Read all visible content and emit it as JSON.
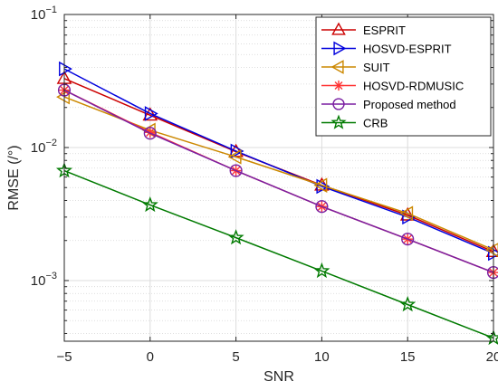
{
  "chart_data": {
    "type": "line",
    "xlabel": "SNR",
    "ylabel": "RMSE (/°)",
    "xlim": [
      -5,
      20
    ],
    "ylim": [
      0.00035,
      0.1
    ],
    "yscale": "log",
    "grid": true,
    "legend_position": "top-right",
    "x": [
      -5,
      0,
      5,
      10,
      15,
      20
    ],
    "x_ticks": [
      -5,
      0,
      5,
      10,
      15,
      20
    ],
    "x_tick_labels": [
      "−5",
      "0",
      "5",
      "10",
      "15",
      "20"
    ],
    "y_ticks": [
      {
        "value": 0.1,
        "base": "10",
        "exp": "−1"
      },
      {
        "value": 0.01,
        "base": "10",
        "exp": "−2"
      },
      {
        "value": 0.001,
        "base": "10",
        "exp": "−3"
      }
    ],
    "series": [
      {
        "name": "ESPRIT",
        "color": "#cc0000",
        "marker": "triangle-up",
        "values": [
          0.033,
          0.0175,
          0.0093,
          0.0052,
          0.0031,
          0.00165
        ]
      },
      {
        "name": "HOSVD-ESPRIT",
        "color": "#0000dd",
        "marker": "triangle-right",
        "values": [
          0.039,
          0.018,
          0.0094,
          0.0051,
          0.003,
          0.0016
        ]
      },
      {
        "name": "SUIT",
        "color": "#cc8800",
        "marker": "triangle-left",
        "values": [
          0.024,
          0.0135,
          0.0085,
          0.0052,
          0.0032,
          0.0017
        ]
      },
      {
        "name": "HOSVD-RDMUSIC",
        "color": "#ff3333",
        "marker": "asterisk",
        "values": [
          0.027,
          0.013,
          0.0067,
          0.0036,
          0.00205,
          0.00115
        ]
      },
      {
        "name": "Proposed method",
        "color": "#7a1fa2",
        "marker": "circle",
        "values": [
          0.027,
          0.0128,
          0.0067,
          0.0036,
          0.00205,
          0.00115
        ]
      },
      {
        "name": "CRB",
        "color": "#007a00",
        "marker": "star",
        "values": [
          0.0067,
          0.0037,
          0.0021,
          0.00118,
          0.00066,
          0.00037
        ]
      }
    ]
  }
}
